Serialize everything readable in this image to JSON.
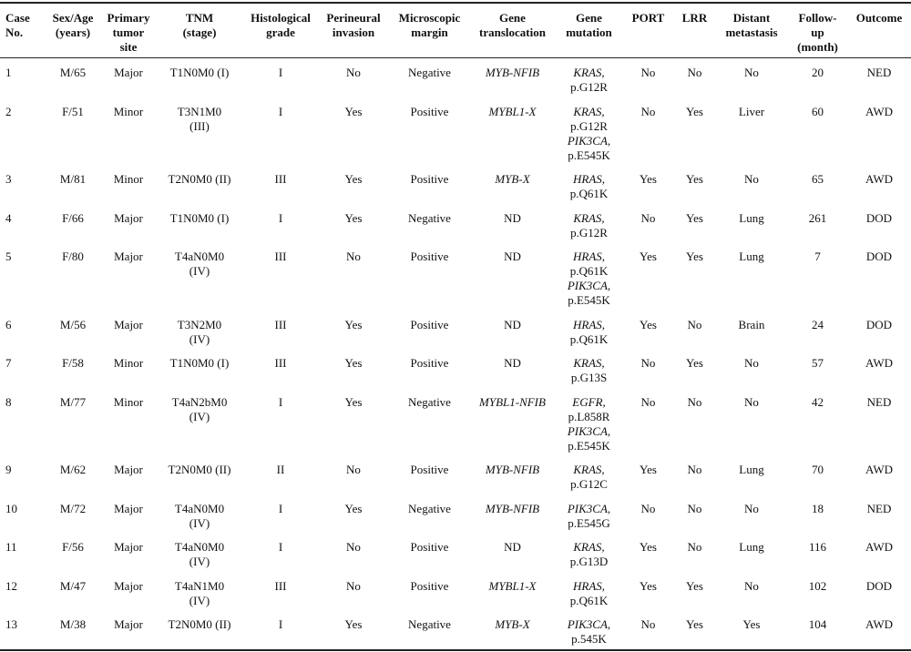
{
  "table": {
    "columns": [
      [
        "Case",
        "No."
      ],
      [
        "Sex/Age",
        "(years)"
      ],
      [
        "Primary",
        "tumor",
        "site"
      ],
      [
        "TNM",
        "(stage)"
      ],
      [
        "Histological",
        "grade"
      ],
      [
        "Perineural",
        "invasion"
      ],
      [
        "Microscopic",
        "margin"
      ],
      [
        "Gene",
        "translocation"
      ],
      [
        "Gene",
        "mutation"
      ],
      [
        "PORT"
      ],
      [
        "LRR"
      ],
      [
        "Distant",
        "metastasis"
      ],
      [
        "Follow-",
        "up",
        "(month)"
      ],
      [
        "Outcome"
      ]
    ],
    "rows": [
      [
        1,
        "M/65",
        "Major",
        "T1N0M0 (I)",
        "I",
        "No",
        "Negative",
        {
          "gene": "MYB-NFIB"
        },
        [
          {
            "gene": "KRAS,",
            "change": "p.G12R"
          }
        ],
        "No",
        "No",
        "No",
        20,
        "NED"
      ],
      [
        2,
        "F/51",
        "Minor",
        [
          "T3N1M0",
          "(III)"
        ],
        "I",
        "Yes",
        "Positive",
        {
          "gene": "MYBL1-X"
        },
        [
          {
            "gene": "KRAS,",
            "change": "p.G12R"
          },
          {
            "gene": "PIK3CA,",
            "change": "p.E545K"
          }
        ],
        "No",
        "Yes",
        "Liver",
        60,
        "AWD"
      ],
      [
        3,
        "M/81",
        "Minor",
        "T2N0M0 (II)",
        "III",
        "Yes",
        "Positive",
        {
          "gene": "MYB-X"
        },
        [
          {
            "gene": "HRAS,",
            "change": "p.Q61K"
          }
        ],
        "Yes",
        "Yes",
        "No",
        65,
        "AWD"
      ],
      [
        4,
        "F/66",
        "Major",
        "T1N0M0 (I)",
        "I",
        "Yes",
        "Negative",
        "ND",
        [
          {
            "gene": "KRAS,",
            "change": "p.G12R"
          }
        ],
        "No",
        "Yes",
        "Lung",
        261,
        "DOD"
      ],
      [
        5,
        "F/80",
        "Major",
        [
          "T4aN0M0",
          "(IV)"
        ],
        "III",
        "No",
        "Positive",
        "ND",
        [
          {
            "gene": "HRAS,",
            "change": "p.Q61K"
          },
          {
            "gene": "PIK3CA,",
            "change": "p.E545K"
          }
        ],
        "Yes",
        "Yes",
        "Lung",
        7,
        "DOD"
      ],
      [
        6,
        "M/56",
        "Major",
        [
          "T3N2M0",
          "(IV)"
        ],
        "III",
        "Yes",
        "Positive",
        "ND",
        [
          {
            "gene": "HRAS,",
            "change": "p.Q61K"
          }
        ],
        "Yes",
        "No",
        "Brain",
        24,
        "DOD"
      ],
      [
        7,
        "F/58",
        "Minor",
        "T1N0M0 (I)",
        "III",
        "Yes",
        "Positive",
        "ND",
        [
          {
            "gene": "KRAS,",
            "change": "p.G13S"
          }
        ],
        "No",
        "Yes",
        "No",
        57,
        "AWD"
      ],
      [
        8,
        "M/77",
        "Minor",
        [
          "T4aN2bM0",
          "(IV)"
        ],
        "I",
        "Yes",
        "Negative",
        {
          "gene": "MYBL1-NFIB"
        },
        [
          {
            "gene": "EGFR,",
            "change": "p.L858R"
          },
          {
            "gene": "PIK3CA,",
            "change": "p.E545K"
          }
        ],
        "No",
        "No",
        "No",
        42,
        "NED"
      ],
      [
        9,
        "M/62",
        "Major",
        "T2N0M0 (II)",
        "II",
        "No",
        "Positive",
        {
          "gene": "MYB-NFIB"
        },
        [
          {
            "gene": "KRAS,",
            "change": "p.G12C"
          }
        ],
        "Yes",
        "No",
        "Lung",
        70,
        "AWD"
      ],
      [
        10,
        "M/72",
        "Major",
        [
          "T4aN0M0",
          "(IV)"
        ],
        "I",
        "Yes",
        "Negative",
        {
          "gene": "MYB-NFIB"
        },
        [
          {
            "gene": "PIK3CA,",
            "change": "p.E545G"
          }
        ],
        "No",
        "No",
        "No",
        18,
        "NED"
      ],
      [
        11,
        "F/56",
        "Major",
        [
          "T4aN0M0",
          "(IV)"
        ],
        "I",
        "No",
        "Positive",
        "ND",
        [
          {
            "gene": "KRAS,",
            "change": "p.G13D"
          }
        ],
        "Yes",
        "No",
        "Lung",
        116,
        "AWD"
      ],
      [
        12,
        "M/47",
        "Major",
        [
          "T4aN1M0",
          "(IV)"
        ],
        "III",
        "No",
        "Positive",
        {
          "gene": "MYBL1-X"
        },
        [
          {
            "gene": "HRAS,",
            "change": "p.Q61K"
          }
        ],
        "Yes",
        "Yes",
        "No",
        102,
        "DOD"
      ],
      [
        13,
        "M/38",
        "Major",
        "T2N0M0 (II)",
        "I",
        "Yes",
        "Negative",
        {
          "gene": "MYB-X"
        },
        [
          {
            "gene": "PIK3CA,",
            "change": "p.545K"
          }
        ],
        "No",
        "Yes",
        "Yes",
        104,
        "AWD"
      ]
    ]
  }
}
